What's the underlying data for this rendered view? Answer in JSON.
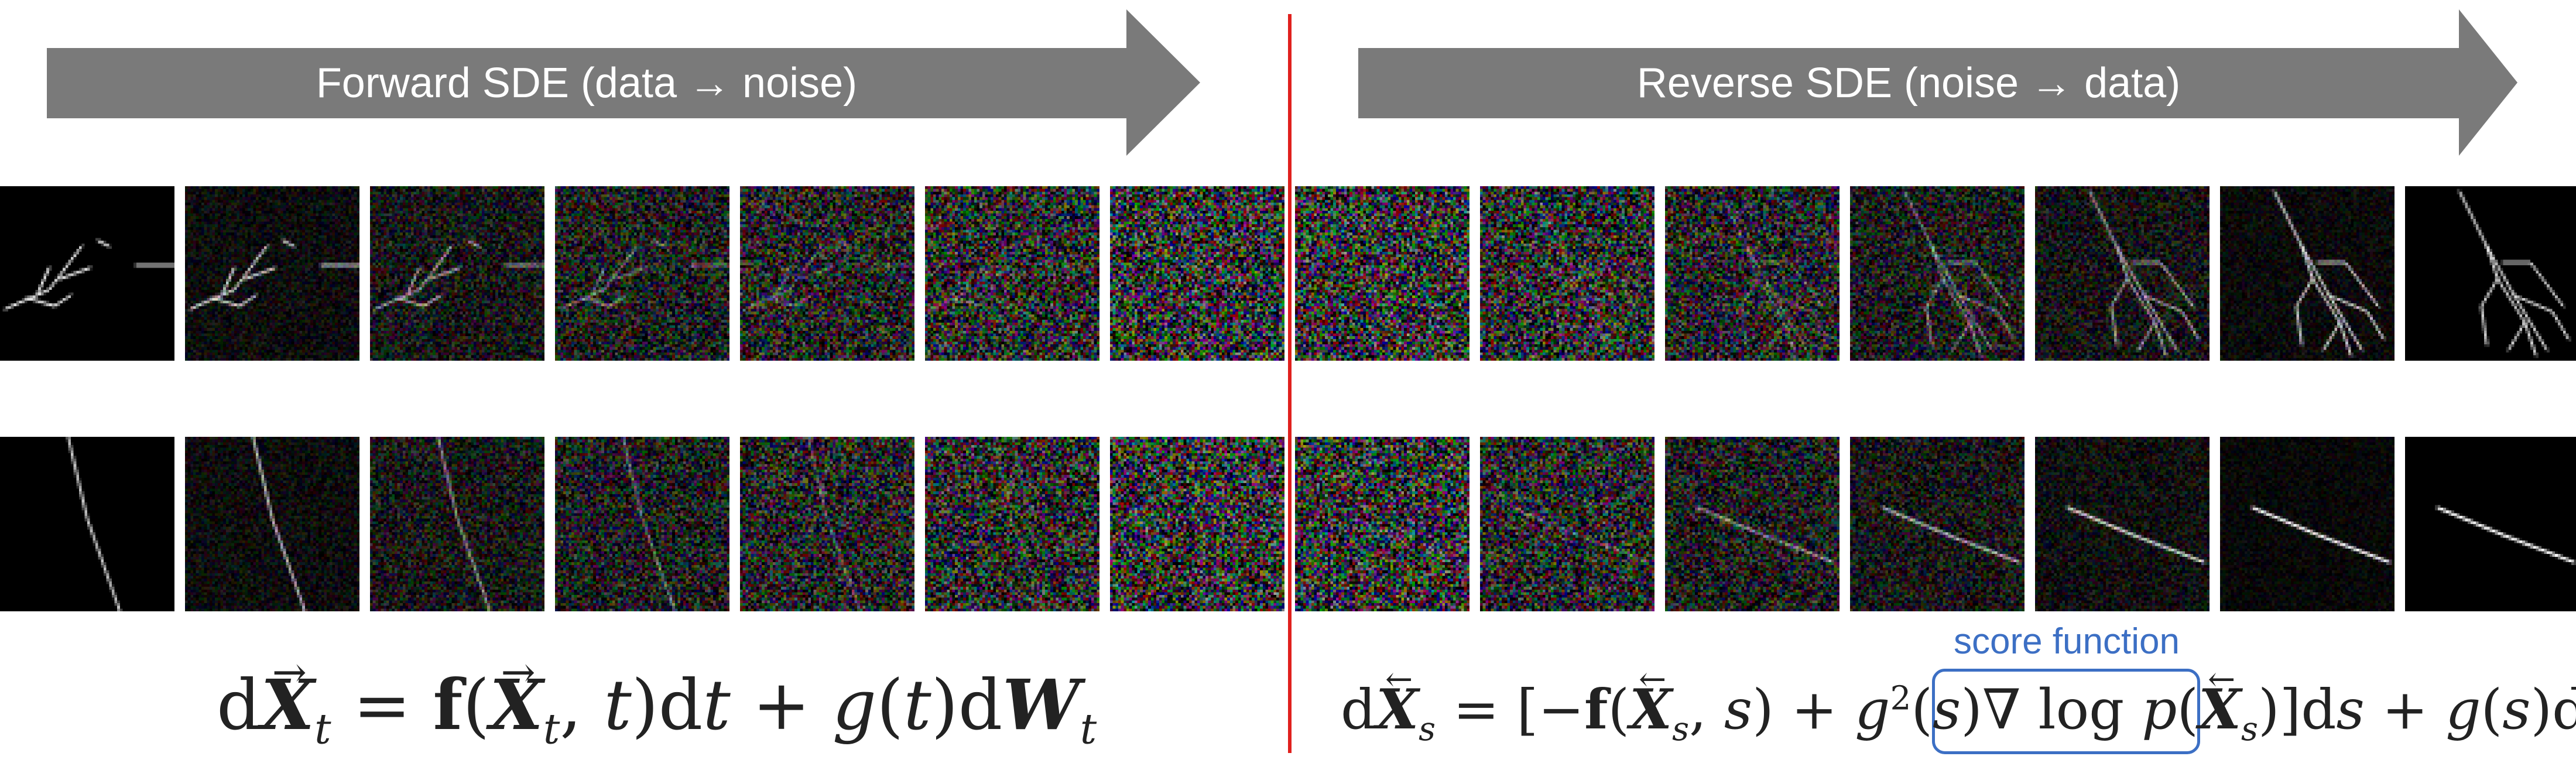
{
  "arrows": {
    "forward_label": "Forward SDE (data → noise)",
    "reverse_label": "Reverse SDE (noise → data)",
    "color": "#7a7a7a"
  },
  "colors": {
    "divider": "#e0201d",
    "score_box": "#3c6fc4"
  },
  "score_function_label": "score function",
  "rows": [
    {
      "name": "branching structure",
      "tiles": [
        {
          "noise": 0.0,
          "structure": "branch"
        },
        {
          "noise": 0.25,
          "structure": "branch"
        },
        {
          "noise": 0.45,
          "structure": "branch"
        },
        {
          "noise": 0.6,
          "structure": "branch"
        },
        {
          "noise": 0.72,
          "structure": "branch"
        },
        {
          "noise": 0.85,
          "structure": "branch"
        },
        {
          "noise": 1.0,
          "structure": "branch"
        },
        {
          "noise": 1.0,
          "structure": "tree"
        },
        {
          "noise": 0.9,
          "structure": "tree"
        },
        {
          "noise": 0.75,
          "structure": "tree"
        },
        {
          "noise": 0.55,
          "structure": "tree"
        },
        {
          "noise": 0.4,
          "structure": "tree"
        },
        {
          "noise": 0.2,
          "structure": "tree"
        },
        {
          "noise": 0.0,
          "structure": "tree"
        }
      ]
    },
    {
      "name": "line structure",
      "tiles": [
        {
          "noise": 0.0,
          "structure": "line_steep"
        },
        {
          "noise": 0.25,
          "structure": "line_steep"
        },
        {
          "noise": 0.45,
          "structure": "line_steep"
        },
        {
          "noise": 0.6,
          "structure": "line_steep"
        },
        {
          "noise": 0.72,
          "structure": "line_steep"
        },
        {
          "noise": 0.85,
          "structure": "line_steep"
        },
        {
          "noise": 1.0,
          "structure": "line_steep"
        },
        {
          "noise": 1.0,
          "structure": "line_flat"
        },
        {
          "noise": 0.8,
          "structure": "line_flat"
        },
        {
          "noise": 0.6,
          "structure": "line_flat"
        },
        {
          "noise": 0.45,
          "structure": "line_flat"
        },
        {
          "noise": 0.3,
          "structure": "line_flat"
        },
        {
          "noise": 0.15,
          "structure": "line_flat"
        },
        {
          "noise": 0.0,
          "structure": "line_flat"
        }
      ]
    }
  ]
}
